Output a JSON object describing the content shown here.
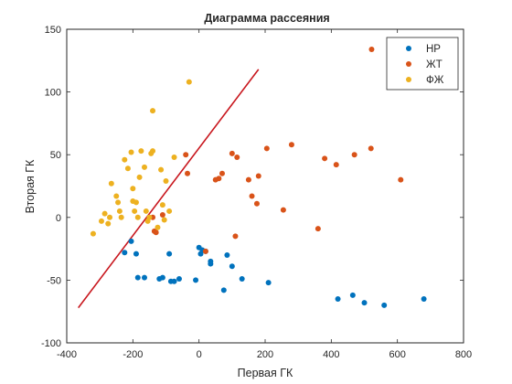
{
  "chart_data": {
    "type": "scatter",
    "title": "Диаграмма рассеяния",
    "xlabel": "Первая ГК",
    "ylabel": "Вторая ГК",
    "xlim": [
      -400,
      800
    ],
    "ylim": [
      -100,
      150
    ],
    "xticks": [
      -400,
      -200,
      0,
      200,
      400,
      600,
      800
    ],
    "yticks": [
      -100,
      -50,
      0,
      50,
      100,
      150
    ],
    "xtick_labels": [
      "-400",
      "-200",
      "0",
      "200",
      "400",
      "600",
      "800"
    ],
    "ytick_labels": [
      "-100",
      "-50",
      "0",
      "50",
      "100",
      "150"
    ],
    "grid": false,
    "legend_position": "top-right",
    "series": [
      {
        "name": "НР",
        "color": "#0072BD",
        "points": [
          [
            -225,
            -28
          ],
          [
            -205,
            -19
          ],
          [
            -190,
            -29
          ],
          [
            -185,
            -48
          ],
          [
            -165,
            -48
          ],
          [
            -120,
            -49
          ],
          [
            -110,
            -48
          ],
          [
            -90,
            -29
          ],
          [
            -85,
            -51
          ],
          [
            -75,
            -51
          ],
          [
            -60,
            -49
          ],
          [
            -10,
            -50
          ],
          [
            0,
            -24
          ],
          [
            5,
            -29
          ],
          [
            10,
            -26
          ],
          [
            20,
            -27
          ],
          [
            35,
            -35
          ],
          [
            35,
            -37
          ],
          [
            75,
            -58
          ],
          [
            85,
            -30
          ],
          [
            100,
            -39
          ],
          [
            130,
            -49
          ],
          [
            210,
            -52
          ],
          [
            420,
            -65
          ],
          [
            465,
            -62
          ],
          [
            500,
            -68
          ],
          [
            560,
            -70
          ],
          [
            680,
            -65
          ]
        ]
      },
      {
        "name": "ЖТ",
        "color": "#D95319",
        "points": [
          [
            -140,
            0
          ],
          [
            -135,
            -11
          ],
          [
            -130,
            -12
          ],
          [
            -110,
            2
          ],
          [
            -40,
            50
          ],
          [
            -35,
            35
          ],
          [
            20,
            -27
          ],
          [
            50,
            30
          ],
          [
            60,
            31
          ],
          [
            70,
            35
          ],
          [
            100,
            51
          ],
          [
            110,
            -15
          ],
          [
            115,
            48
          ],
          [
            150,
            30
          ],
          [
            160,
            17
          ],
          [
            175,
            11
          ],
          [
            180,
            33
          ],
          [
            205,
            55
          ],
          [
            255,
            6
          ],
          [
            280,
            58
          ],
          [
            360,
            -9
          ],
          [
            380,
            47
          ],
          [
            415,
            42
          ],
          [
            470,
            50
          ],
          [
            520,
            55
          ],
          [
            610,
            30
          ],
          [
            522,
            134
          ]
        ]
      },
      {
        "name": "ФЖ",
        "color": "#EDB120",
        "points": [
          [
            -320,
            -13
          ],
          [
            -295,
            -3
          ],
          [
            -285,
            3
          ],
          [
            -275,
            -5
          ],
          [
            -270,
            0
          ],
          [
            -265,
            27
          ],
          [
            -250,
            17
          ],
          [
            -245,
            12
          ],
          [
            -240,
            5
          ],
          [
            -235,
            0
          ],
          [
            -225,
            46
          ],
          [
            -215,
            39
          ],
          [
            -205,
            52
          ],
          [
            -200,
            23
          ],
          [
            -200,
            13
          ],
          [
            -195,
            5
          ],
          [
            -185,
            0
          ],
          [
            -180,
            32
          ],
          [
            -175,
            53
          ],
          [
            -165,
            40
          ],
          [
            -160,
            5
          ],
          [
            -155,
            -3
          ],
          [
            -150,
            0
          ],
          [
            -145,
            51
          ],
          [
            -140,
            53
          ],
          [
            -140,
            85
          ],
          [
            -115,
            38
          ],
          [
            -110,
            10
          ],
          [
            -105,
            -2
          ],
          [
            -100,
            29
          ],
          [
            -90,
            5
          ],
          [
            -75,
            48
          ],
          [
            -30,
            108
          ],
          [
            -190,
            12
          ],
          [
            -125,
            -8
          ]
        ]
      }
    ],
    "reference_line": {
      "color": "#C8171E",
      "from": [
        -365,
        -72
      ],
      "to": [
        180,
        118
      ]
    }
  }
}
